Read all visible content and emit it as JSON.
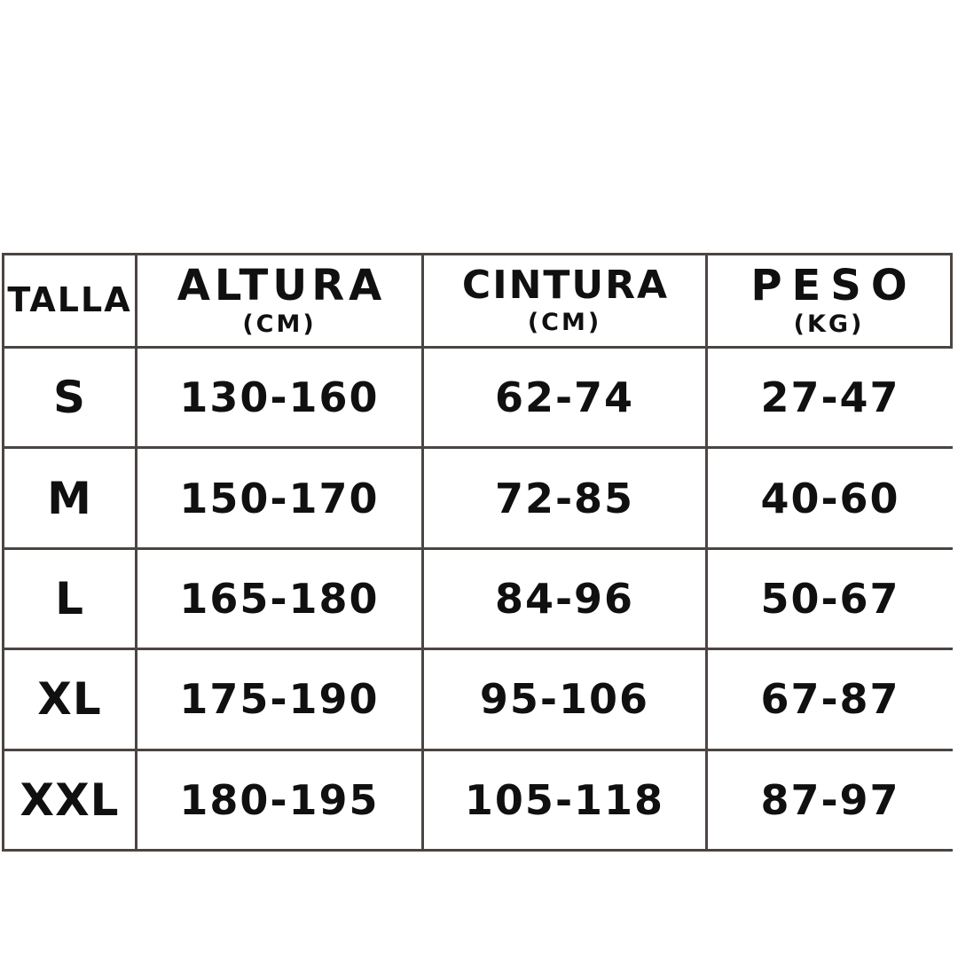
{
  "colors": {
    "background": "#ffffff",
    "grid_line": "#4b4542",
    "text": "#101010"
  },
  "table": {
    "columns": [
      {
        "label": "TALLA",
        "sub": ""
      },
      {
        "label": "ALTURA",
        "sub": "(CM)"
      },
      {
        "label": "CINTURA",
        "sub": "(CM)"
      },
      {
        "label": "PESO",
        "sub": "(KG)"
      }
    ],
    "rows": [
      {
        "size": "S",
        "altura": "130-160",
        "cintura": "62-74",
        "peso": "27-47"
      },
      {
        "size": "M",
        "altura": "150-170",
        "cintura": "72-85",
        "peso": "40-60"
      },
      {
        "size": "L",
        "altura": "165-180",
        "cintura": "84-96",
        "peso": "50-67"
      },
      {
        "size": "XL",
        "altura": "175-190",
        "cintura": "95-106",
        "peso": "67-87"
      },
      {
        "size": "XXL",
        "altura": "180-195",
        "cintura": "105-118",
        "peso": "87-97"
      }
    ]
  },
  "chart_data": {
    "type": "table",
    "title": "",
    "columns": [
      "TALLA",
      "ALTURA (CM)",
      "CINTURA (CM)",
      "PESO (KG)"
    ],
    "rows": [
      [
        "S",
        "130-160",
        "62-74",
        "27-47"
      ],
      [
        "M",
        "150-170",
        "72-85",
        "40-60"
      ],
      [
        "L",
        "165-180",
        "84-96",
        "50-67"
      ],
      [
        "XL",
        "175-190",
        "95-106",
        "67-87"
      ],
      [
        "XXL",
        "180-195",
        "105-118",
        "87-97"
      ]
    ]
  }
}
